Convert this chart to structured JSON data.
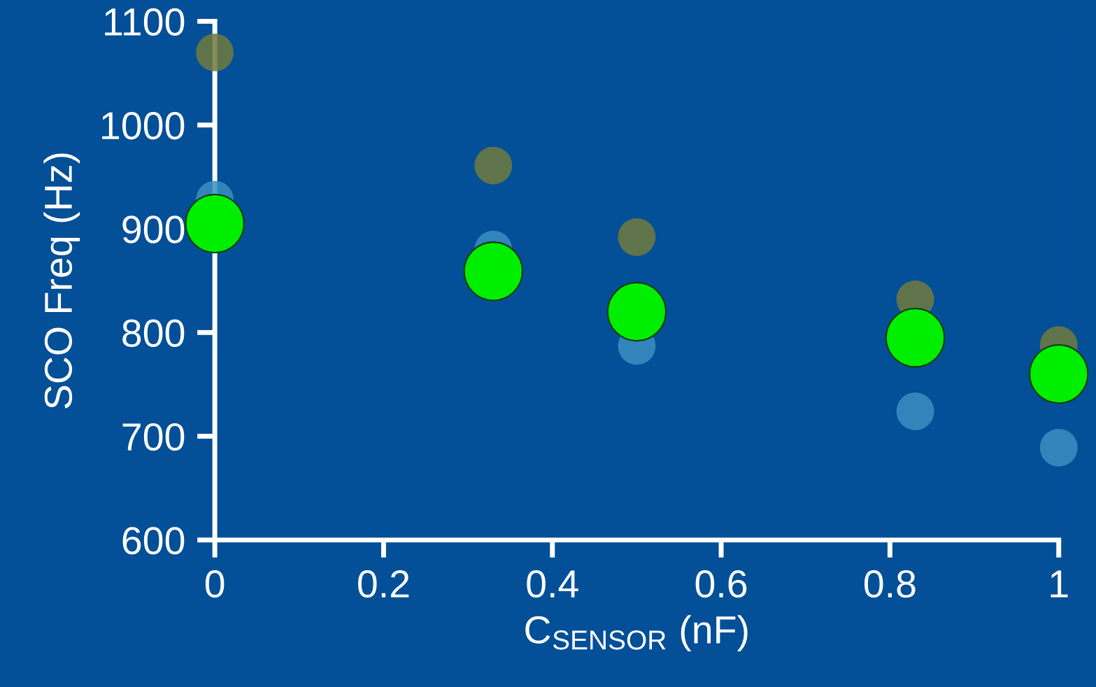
{
  "chart_data": {
    "type": "scatter",
    "xlabel": "C$_{SENSOR}$ (nF)",
    "ylabel": "SCO Freq (Hz)",
    "xlim": [
      0,
      1
    ],
    "ylim": [
      600,
      1100
    ],
    "xticks": [
      0,
      0.2,
      0.4,
      0.6,
      0.8,
      1
    ],
    "yticks": [
      600,
      700,
      800,
      900,
      1000,
      1100
    ],
    "grid": false,
    "marker": "circle",
    "series": [
      {
        "color": "#707a3c",
        "x": [
          0,
          0.33,
          0.5,
          0.83,
          1
        ],
        "values": [
          1070,
          961,
          892,
          832,
          788
        ]
      },
      {
        "color": "#3a8ec0",
        "x": [
          0,
          0.33,
          0.5,
          0.83,
          1
        ],
        "values": [
          928,
          880,
          787,
          724,
          689
        ]
      },
      {
        "color": "#00ee00",
        "x": [
          0,
          0.33,
          0.5,
          0.83,
          1
        ],
        "values": [
          905,
          859,
          820,
          795,
          760
        ]
      }
    ]
  }
}
